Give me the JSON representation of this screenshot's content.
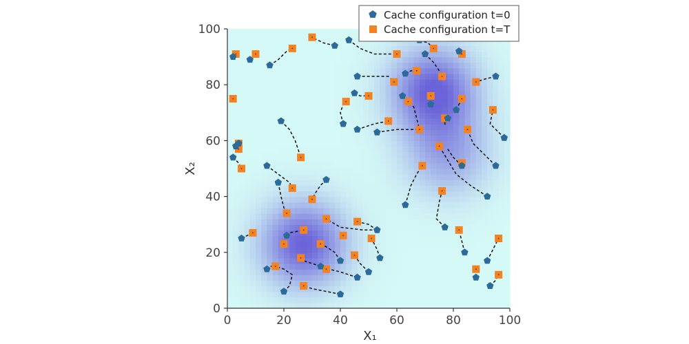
{
  "chart_data": {
    "type": "scatter",
    "title": "",
    "xlabel": "X₁",
    "ylabel": "X₂",
    "xlim": [
      0,
      100
    ],
    "ylim": [
      0,
      100
    ],
    "x_ticks": [
      0,
      20,
      40,
      60,
      80,
      100
    ],
    "y_ticks": [
      0,
      20,
      40,
      60,
      80,
      100
    ],
    "x_tick_labels": [
      "0",
      "20",
      "40",
      "60",
      "80",
      "100"
    ],
    "y_tick_labels": [
      "0",
      "20",
      "40",
      "60",
      "80",
      "100"
    ],
    "grid": false,
    "legend_position": "top-right",
    "background": "density heatmap (cyan low, purple high)",
    "density_centers": [
      {
        "x": 27,
        "y": 23,
        "strength": 1.0
      },
      {
        "x": 73,
        "y": 78,
        "strength": 1.0
      },
      {
        "x": 78,
        "y": 55,
        "strength": 0.55
      }
    ],
    "colors": {
      "start": "#2c6a9a",
      "end": "#f58220",
      "trajectory": "#111111",
      "background_low": "#d4f9f6",
      "background_high": "#6a63d9"
    },
    "series": [
      {
        "name": "Cache configuration t=0",
        "marker": "pentagon",
        "color": "#2c6a9a",
        "points": [
          [
            4,
            59
          ],
          [
            3,
            58
          ],
          [
            2,
            54
          ],
          [
            14,
            51
          ],
          [
            18,
            45
          ],
          [
            19,
            67
          ],
          [
            35,
            46
          ],
          [
            5,
            25
          ],
          [
            14,
            14
          ],
          [
            20,
            6
          ],
          [
            40,
            5
          ],
          [
            46,
            11
          ],
          [
            50,
            13
          ],
          [
            53,
            28
          ],
          [
            54,
            18
          ],
          [
            40,
            17
          ],
          [
            33,
            15
          ],
          [
            21,
            26
          ],
          [
            15,
            87
          ],
          [
            8,
            89
          ],
          [
            2,
            90
          ],
          [
            38,
            94
          ],
          [
            43,
            96
          ],
          [
            41,
            66
          ],
          [
            46,
            64
          ],
          [
            45,
            77
          ],
          [
            46,
            83
          ],
          [
            53,
            63
          ],
          [
            63,
            84
          ],
          [
            62,
            76
          ],
          [
            70,
            91
          ],
          [
            72,
            73
          ],
          [
            68,
            96
          ],
          [
            82,
            92
          ],
          [
            78,
            68
          ],
          [
            81,
            71
          ],
          [
            95,
            83
          ],
          [
            98,
            61
          ],
          [
            95,
            51
          ],
          [
            63,
            37
          ],
          [
            77,
            29
          ],
          [
            84,
            20
          ],
          [
            92,
            40
          ],
          [
            92,
            17
          ],
          [
            88,
            11
          ],
          [
            93,
            8
          ],
          [
            83,
            51
          ]
        ]
      },
      {
        "name": "Cache configuration t=T",
        "marker": "square",
        "color": "#f58220",
        "points": [
          [
            3,
            91
          ],
          [
            10,
            91
          ],
          [
            23,
            93
          ],
          [
            30,
            97
          ],
          [
            2,
            75
          ],
          [
            4,
            59
          ],
          [
            4,
            57
          ],
          [
            5,
            50
          ],
          [
            26,
            54
          ],
          [
            23,
            43
          ],
          [
            21,
            34
          ],
          [
            30,
            39
          ],
          [
            27,
            28
          ],
          [
            35,
            32
          ],
          [
            46,
            31
          ],
          [
            41,
            26
          ],
          [
            51,
            25
          ],
          [
            20,
            23
          ],
          [
            9,
            27
          ],
          [
            17,
            15
          ],
          [
            26,
            18
          ],
          [
            33,
            23
          ],
          [
            35,
            14
          ],
          [
            45,
            19
          ],
          [
            27,
            8
          ],
          [
            60,
            91
          ],
          [
            59,
            81
          ],
          [
            50,
            76
          ],
          [
            42,
            74
          ],
          [
            57,
            67
          ],
          [
            68,
            64
          ],
          [
            64,
            74
          ],
          [
            67,
            85
          ],
          [
            73,
            93
          ],
          [
            76,
            83
          ],
          [
            72,
            76
          ],
          [
            77,
            68
          ],
          [
            83,
            75
          ],
          [
            83,
            91
          ],
          [
            88,
            81
          ],
          [
            94,
            71
          ],
          [
            85,
            64
          ],
          [
            75,
            58
          ],
          [
            69,
            51
          ],
          [
            83,
            52
          ],
          [
            76,
            42
          ],
          [
            82,
            28
          ],
          [
            88,
            14
          ],
          [
            96,
            25
          ],
          [
            96,
            12
          ]
        ]
      }
    ],
    "trajectories": [
      [
        [
          19,
          67
        ],
        [
          22,
          64
        ],
        [
          24,
          60
        ],
        [
          26,
          54
        ]
      ],
      [
        [
          14,
          51
        ],
        [
          18,
          48
        ],
        [
          22,
          45
        ],
        [
          23,
          43
        ]
      ],
      [
        [
          18,
          45
        ],
        [
          19,
          40
        ],
        [
          20,
          36
        ],
        [
          21,
          34
        ]
      ],
      [
        [
          35,
          46
        ],
        [
          33,
          44
        ],
        [
          31,
          41
        ],
        [
          30,
          39
        ]
      ],
      [
        [
          5,
          25
        ],
        [
          7,
          26
        ],
        [
          9,
          27
        ]
      ],
      [
        [
          14,
          14
        ],
        [
          15,
          15
        ],
        [
          17,
          15
        ]
      ],
      [
        [
          20,
          6
        ],
        [
          22,
          8
        ],
        [
          23,
          12
        ],
        [
          20,
          14
        ],
        [
          17,
          15
        ]
      ],
      [
        [
          40,
          5
        ],
        [
          35,
          6
        ],
        [
          30,
          7
        ],
        [
          27,
          8
        ]
      ],
      [
        [
          46,
          11
        ],
        [
          40,
          13
        ],
        [
          36,
          14
        ],
        [
          35,
          14
        ]
      ],
      [
        [
          50,
          13
        ],
        [
          47,
          16
        ],
        [
          45,
          19
        ]
      ],
      [
        [
          53,
          28
        ],
        [
          48,
          28
        ],
        [
          40,
          29
        ],
        [
          35,
          32
        ]
      ],
      [
        [
          53,
          28
        ],
        [
          50,
          30
        ],
        [
          46,
          31
        ]
      ],
      [
        [
          54,
          18
        ],
        [
          53,
          21
        ],
        [
          51,
          25
        ]
      ],
      [
        [
          40,
          17
        ],
        [
          38,
          20
        ],
        [
          35,
          22
        ],
        [
          33,
          23
        ]
      ],
      [
        [
          33,
          15
        ],
        [
          30,
          16
        ],
        [
          27,
          17
        ],
        [
          26,
          18
        ]
      ],
      [
        [
          21,
          26
        ],
        [
          22,
          27
        ],
        [
          27,
          28
        ]
      ],
      [
        [
          2,
          58
        ],
        [
          3,
          60
        ],
        [
          4,
          59
        ]
      ],
      [
        [
          2,
          54
        ],
        [
          4,
          52
        ],
        [
          5,
          50
        ]
      ],
      [
        [
          15,
          87
        ],
        [
          18,
          89
        ],
        [
          21,
          92
        ],
        [
          23,
          93
        ]
      ],
      [
        [
          8,
          89
        ],
        [
          9,
          90
        ],
        [
          10,
          91
        ]
      ],
      [
        [
          38,
          94
        ],
        [
          34,
          95
        ],
        [
          30,
          97
        ]
      ],
      [
        [
          43,
          96
        ],
        [
          47,
          93
        ],
        [
          52,
          91
        ],
        [
          60,
          91
        ]
      ],
      [
        [
          41,
          66
        ],
        [
          40,
          70
        ],
        [
          41,
          73
        ],
        [
          42,
          74
        ]
      ],
      [
        [
          46,
          64
        ],
        [
          52,
          66
        ],
        [
          57,
          67
        ]
      ],
      [
        [
          45,
          77
        ],
        [
          47,
          76
        ],
        [
          50,
          76
        ]
      ],
      [
        [
          46,
          83
        ],
        [
          52,
          83
        ],
        [
          57,
          83
        ],
        [
          59,
          81
        ]
      ],
      [
        [
          53,
          63
        ],
        [
          60,
          64
        ],
        [
          68,
          64
        ]
      ],
      [
        [
          62,
          76
        ],
        [
          63,
          75
        ],
        [
          64,
          74
        ]
      ],
      [
        [
          63,
          84
        ],
        [
          65,
          85
        ],
        [
          67,
          85
        ]
      ],
      [
        [
          70,
          91
        ],
        [
          73,
          88
        ],
        [
          75,
          85
        ],
        [
          76,
          83
        ]
      ],
      [
        [
          72,
          73
        ],
        [
          72,
          75
        ],
        [
          72,
          76
        ]
      ],
      [
        [
          68,
          96
        ],
        [
          71,
          95
        ],
        [
          73,
          93
        ]
      ],
      [
        [
          82,
          92
        ],
        [
          83,
          91
        ]
      ],
      [
        [
          78,
          68
        ],
        [
          77,
          67
        ],
        [
          77,
          65
        ]
      ],
      [
        [
          81,
          71
        ],
        [
          82,
          73
        ],
        [
          83,
          75
        ]
      ],
      [
        [
          95,
          83
        ],
        [
          91,
          82
        ],
        [
          88,
          81
        ]
      ],
      [
        [
          98,
          61
        ],
        [
          96,
          63
        ],
        [
          93,
          66
        ],
        [
          94,
          71
        ]
      ],
      [
        [
          95,
          51
        ],
        [
          91,
          55
        ],
        [
          87,
          59
        ],
        [
          85,
          64
        ]
      ],
      [
        [
          63,
          37
        ],
        [
          65,
          44
        ],
        [
          67,
          48
        ],
        [
          69,
          51
        ]
      ],
      [
        [
          77,
          29
        ],
        [
          74,
          32
        ],
        [
          75,
          38
        ],
        [
          76,
          42
        ]
      ],
      [
        [
          84,
          20
        ],
        [
          83,
          24
        ],
        [
          82,
          28
        ]
      ],
      [
        [
          92,
          40
        ],
        [
          86,
          44
        ],
        [
          81,
          48
        ],
        [
          75,
          58
        ]
      ],
      [
        [
          88,
          11
        ],
        [
          88,
          14
        ]
      ],
      [
        [
          92,
          17
        ],
        [
          94,
          21
        ],
        [
          96,
          25
        ]
      ],
      [
        [
          93,
          8
        ],
        [
          95,
          10
        ],
        [
          96,
          12
        ]
      ],
      [
        [
          83,
          51
        ],
        [
          80,
          54
        ],
        [
          78,
          57
        ]
      ],
      [
        [
          62,
          76
        ],
        [
          66,
          72
        ],
        [
          68,
          64
        ]
      ]
    ]
  }
}
